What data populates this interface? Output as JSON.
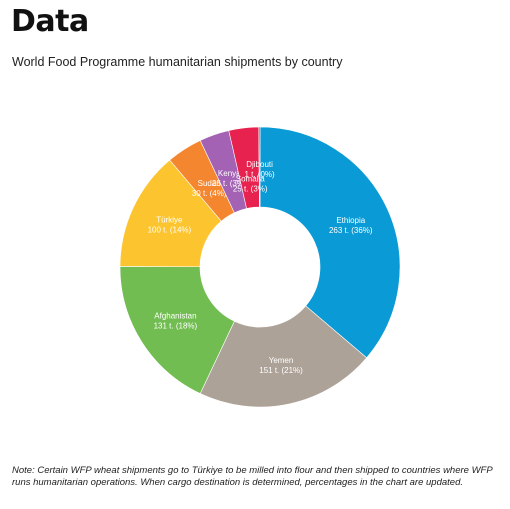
{
  "heading": "Data",
  "note": "Note: Certain WFP wheat shipments go to Türkiye to be milled into flour and then shipped to countries where WFP runs humanitarian operations. When cargo destination is determined, percentages in the chart are updated.",
  "chart_data": {
    "type": "pie",
    "title": "World Food Programme humanitarian shipments by country",
    "donut": true,
    "categories": [
      "Ethiopia",
      "Yemen",
      "Afghanistan",
      "Türkiye",
      "Sudan",
      "Kenya",
      "Somalia",
      "Djibouti"
    ],
    "values": [
      263,
      151,
      131,
      100,
      30,
      25,
      25,
      1
    ],
    "value_labels": [
      "263 t. (36%)",
      "151 t. (21%)",
      "131 t. (18%)",
      "100 t. (14%)",
      "30 t. (4%)",
      "25 t. (3%)",
      "25 t. (3%)",
      "1 t. (0%)"
    ],
    "colors": [
      "#0a9bd6",
      "#ada298",
      "#72bd52",
      "#fcc42e",
      "#f58630",
      "#a362b4",
      "#e8224f",
      "#e8224f"
    ]
  }
}
